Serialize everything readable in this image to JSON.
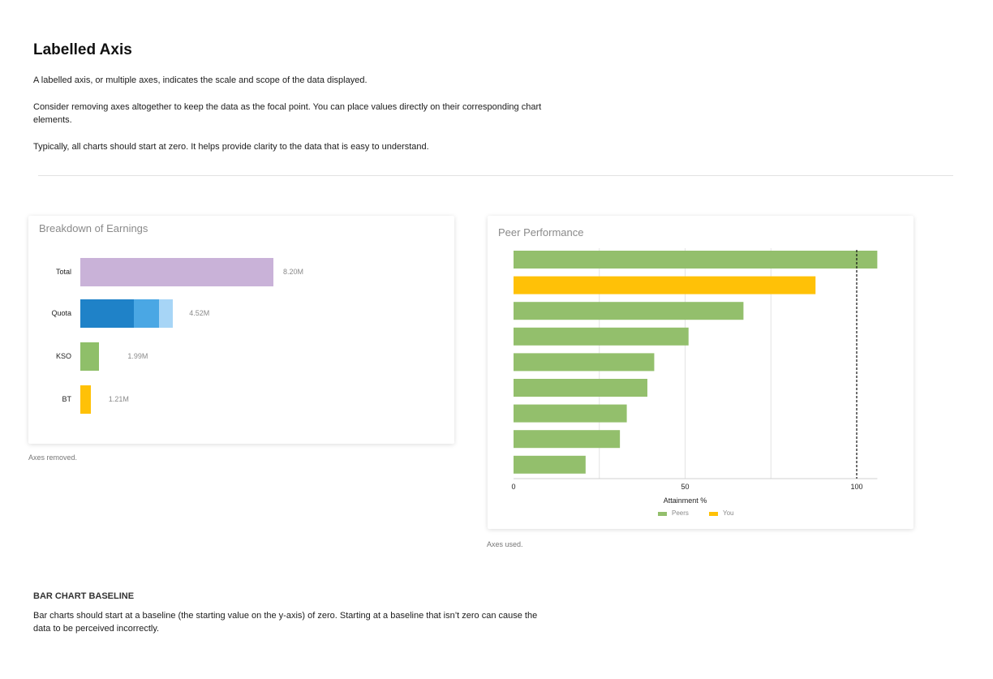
{
  "header": {
    "title": "Labelled Axis",
    "para1": "A labelled axis, or multiple axes, indicates the scale and scope of the data displayed.",
    "para2": "Consider removing axes altogether to keep the data as the focal point. You can place values directly on their corresponding chart elements.",
    "para3": "Typically, all charts should start at zero. It helps provide clarity to the data that is easy to understand."
  },
  "earnings_card": {
    "title": "Breakdown of Earnings",
    "caption": "Axes removed."
  },
  "peer_card": {
    "title": "Peer Performance",
    "caption": "Axes used."
  },
  "baseline_section": {
    "heading": "BAR CHART BASELINE",
    "text": "Bar charts should start at a baseline (the starting value on the y-axis) of zero. Starting at a baseline that isn’t zero can cause the data to be perceived incorrectly."
  },
  "colors": {
    "total": "#c9b2d8",
    "quota_dark": "#1f82c8",
    "quota_mid": "#4aa7e4",
    "quota_light": "#a7d5f6",
    "kso": "#8fbf69",
    "bt": "#ffc107",
    "peers": "#93bf6c",
    "you": "#ffc107"
  },
  "chart_data": [
    {
      "type": "bar",
      "orientation": "horizontal",
      "title": "Breakdown of Earnings",
      "axes": "none",
      "categories": [
        "Total",
        "Quota",
        "KSO",
        "BT"
      ],
      "values": [
        8.2,
        4.52,
        1.99,
        1.21
      ],
      "value_labels": [
        "8.20M",
        "4.52M",
        "1.99M",
        "1.21M"
      ],
      "bar_fraction_of_total": [
        1.0,
        0.48,
        0.098,
        0.054
      ],
      "segments": {
        "Quota": [
          0.58,
          0.27,
          0.15
        ]
      },
      "unit": "M"
    },
    {
      "type": "bar",
      "orientation": "horizontal",
      "title": "Peer Performance",
      "xlabel": "Attainment %",
      "xlim": [
        0,
        100
      ],
      "x_ticks": [
        0,
        50,
        100
      ],
      "reference_line": 100,
      "series": [
        {
          "name": "Peers",
          "color_key": "peers"
        },
        {
          "name": "You",
          "color_key": "you"
        }
      ],
      "bars": [
        {
          "series": "Peers",
          "value": 106
        },
        {
          "series": "You",
          "value": 88
        },
        {
          "series": "Peers",
          "value": 67
        },
        {
          "series": "Peers",
          "value": 51
        },
        {
          "series": "Peers",
          "value": 41
        },
        {
          "series": "Peers",
          "value": 39
        },
        {
          "series": "Peers",
          "value": 33
        },
        {
          "series": "Peers",
          "value": 31
        },
        {
          "series": "Peers",
          "value": 21
        }
      ],
      "legend": [
        "Peers",
        "You"
      ],
      "legend_position": "bottom"
    }
  ]
}
